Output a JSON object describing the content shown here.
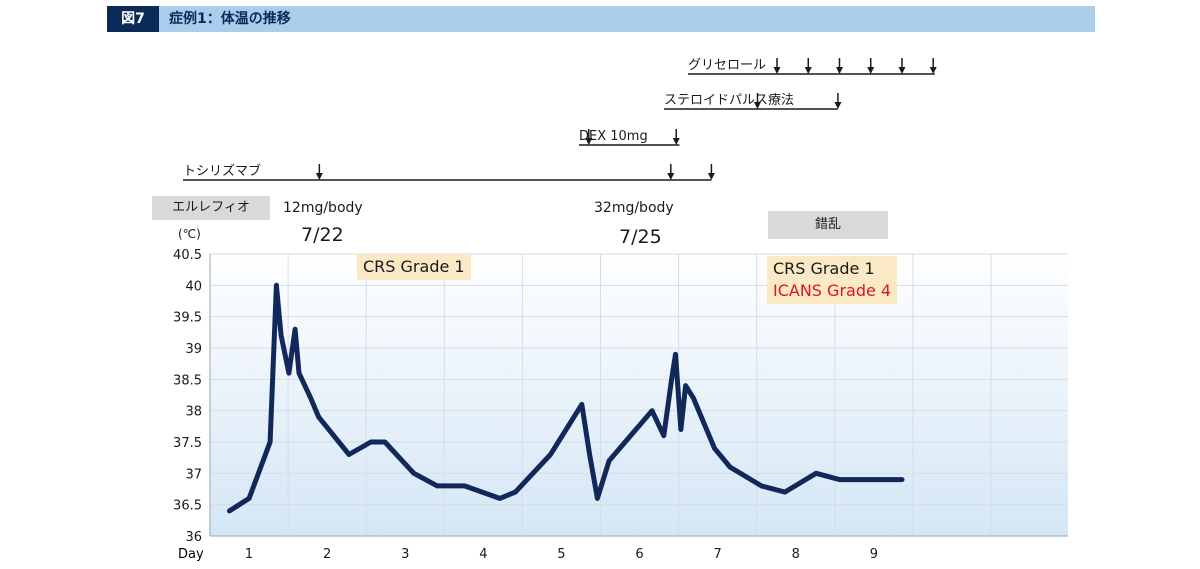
{
  "figure": {
    "badge": "図7",
    "title": "症例1：体温の推移"
  },
  "treatments": [
    {
      "label": "グリセロール",
      "arrows_day": [
        7.76,
        8.16,
        8.56,
        8.96,
        9.36,
        9.76
      ],
      "line_end_day": 9.78
    },
    {
      "label": "ステロイドパルス療法",
      "arrows_day": [
        7.51,
        8.54
      ],
      "line_end_day": 8.54
    },
    {
      "label": "DEX 10mg",
      "arrows_day": [
        5.35,
        6.47
      ],
      "line_end_day": 6.51
    },
    {
      "label": "トシリズマブ",
      "arrows_day": [
        1.9,
        6.4,
        6.92
      ],
      "line_end_day": 6.92
    }
  ],
  "annotations": {
    "drug_box": "エルレフィオ",
    "dose1": "12mg/body",
    "date1": "7/22",
    "dose2": "32mg/body",
    "date2": "7/25",
    "confusion_box": "錯乱",
    "crs1": "CRS Grade 1",
    "crs2": "CRS Grade 1",
    "icans": "ICANS Grade 4",
    "unit": "(℃)"
  },
  "colors": {
    "line": "#13285a",
    "header_bar": "#a9cdea",
    "badge": "#0b2a57",
    "grid": "#d6dde6",
    "gradient_top": "#ffffff",
    "gradient_bottom": "#d4e6f5",
    "note_bg": "#fbe9c6",
    "icans_red": "#d71920"
  },
  "chart_data": {
    "type": "line",
    "title": "",
    "xlabel": "Day",
    "ylabel": "(℃)",
    "ylim": [
      36,
      40.5
    ],
    "yticks": [
      "40.5",
      "40",
      "39.5",
      "39",
      "38.5",
      "38",
      "37.5",
      "37",
      "36.5",
      "36"
    ],
    "xticks": [
      "1",
      "2",
      "3",
      "4",
      "5",
      "6",
      "7",
      "8",
      "9"
    ],
    "grid": true,
    "series": [
      {
        "x": [
          0.75,
          1.0,
          1.27,
          1.35,
          1.41,
          1.51,
          1.59,
          1.64,
          1.79,
          1.89,
          2.28,
          2.56,
          2.74,
          3.11,
          3.41,
          3.76,
          4.21,
          4.41,
          4.86,
          5.26,
          5.36,
          5.46,
          5.61,
          6.16,
          6.31,
          6.41,
          6.46,
          6.53,
          6.59,
          6.69,
          6.96,
          7.16,
          7.56,
          7.86,
          8.26,
          8.56,
          9.06,
          9.36
        ],
        "y": [
          36.4,
          36.6,
          37.5,
          40.0,
          39.2,
          38.6,
          39.3,
          38.6,
          38.2,
          37.9,
          37.3,
          37.5,
          37.5,
          37.0,
          36.8,
          36.8,
          36.6,
          36.7,
          37.3,
          38.1,
          37.3,
          36.6,
          37.2,
          38.0,
          37.6,
          38.5,
          38.9,
          37.7,
          38.4,
          38.2,
          37.4,
          37.1,
          36.8,
          36.7,
          37.0,
          36.9,
          36.9,
          36.9
        ]
      }
    ]
  }
}
